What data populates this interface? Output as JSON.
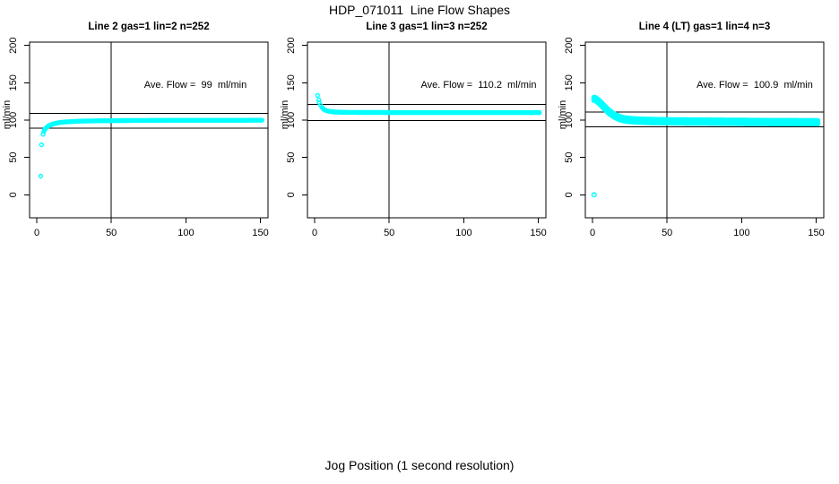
{
  "page": {
    "title": "HDP_071011  Line Flow Shapes",
    "xlabel": "Jog Position (1 second resolution)"
  },
  "colors": {
    "points": "#00FFFF",
    "axis": "#000000",
    "background": "#FFFFFF"
  },
  "chart_data": [
    {
      "type": "scatter",
      "title": "Line 2 gas=1 lin=2 n=252",
      "line": "Line 2",
      "gas": 1,
      "lin": 2,
      "n": 252,
      "annotation": "Ave. Flow =  99  ml/min",
      "ave_flow_ml_min": 99,
      "ylabel": "ml/min",
      "xticks": [
        0,
        50,
        100,
        150
      ],
      "yticks": [
        0,
        50,
        100,
        150,
        200
      ],
      "xlim": [
        -6,
        156
      ],
      "ylim": [
        -30,
        205
      ],
      "grid": false,
      "ref_lines_y": [
        108.9,
        89.1
      ],
      "vline_x": 50,
      "marker": "open-circle",
      "point_radius": 2.0,
      "overlay_offsets": [
        0
      ],
      "series_step": 0.6,
      "outliers": [
        [
          2.6,
          25
        ],
        [
          3.2,
          67
        ],
        [
          4.2,
          81
        ],
        [
          4.8,
          85
        ]
      ],
      "curve_knots": [
        [
          5.2,
          87
        ],
        [
          6,
          89
        ],
        [
          7,
          91
        ],
        [
          8,
          92.3
        ],
        [
          10,
          94.2
        ],
        [
          12,
          95.4
        ],
        [
          15,
          96.6
        ],
        [
          20,
          97.6
        ],
        [
          25,
          98.2
        ],
        [
          30,
          98.6
        ],
        [
          40,
          99.0
        ],
        [
          60,
          99.4
        ],
        [
          90,
          99.7
        ],
        [
          151,
          99.8
        ]
      ]
    },
    {
      "type": "scatter",
      "title": "Line 3 gas=1 lin=3 n=252",
      "line": "Line 3",
      "gas": 1,
      "lin": 3,
      "n": 252,
      "annotation": "Ave. Flow =  110.2  ml/min",
      "ave_flow_ml_min": 110.2,
      "ylabel": "ml/min",
      "xticks": [
        0,
        50,
        100,
        150
      ],
      "yticks": [
        0,
        50,
        100,
        150,
        200
      ],
      "xlim": [
        -6,
        156
      ],
      "ylim": [
        -30,
        205
      ],
      "grid": false,
      "ref_lines_y": [
        121.2,
        99.2
      ],
      "vline_x": 50,
      "marker": "open-circle",
      "point_radius": 2.0,
      "overlay_offsets": [
        0
      ],
      "series_step": 0.6,
      "outliers": [
        [
          2,
          133
        ],
        [
          2.8,
          127
        ],
        [
          3,
          123.5
        ],
        [
          4,
          119.8
        ],
        [
          5,
          117
        ]
      ],
      "curve_knots": [
        [
          5.5,
          115.5
        ],
        [
          6,
          114.6
        ],
        [
          7,
          113.4
        ],
        [
          8,
          112.6
        ],
        [
          10,
          111.6
        ],
        [
          12,
          111.1
        ],
        [
          15,
          110.7
        ],
        [
          20,
          110.4
        ],
        [
          30,
          110.2
        ],
        [
          50,
          110.1
        ],
        [
          151,
          110.0
        ]
      ]
    },
    {
      "type": "scatter",
      "title": "Line 4 (LT) gas=1 lin=4 n=3",
      "line": "Line 4 (LT)",
      "gas": 1,
      "lin": 4,
      "n": 3,
      "annotation": "Ave. Flow =  100.9  ml/min",
      "ave_flow_ml_min": 100.9,
      "ylabel": "ml/min",
      "xticks": [
        0,
        50,
        100,
        150
      ],
      "yticks": [
        0,
        50,
        100,
        150,
        200
      ],
      "xlim": [
        -6,
        156
      ],
      "ylim": [
        -30,
        205
      ],
      "grid": false,
      "ref_lines_y": [
        111.0,
        90.8
      ],
      "vline_x": 50,
      "marker": "open-circle",
      "point_radius": 2.3,
      "overlay_offsets": [
        -2,
        0,
        2
      ],
      "series_step": 0.5,
      "outliers": [
        [
          1,
          0
        ]
      ],
      "curve_knots": [
        [
          1,
          128.5
        ],
        [
          2,
          128
        ],
        [
          3,
          126.6
        ],
        [
          4,
          125
        ],
        [
          5,
          123.2
        ],
        [
          6,
          121.2
        ],
        [
          7,
          119.2
        ],
        [
          8,
          117.1
        ],
        [
          9,
          115
        ],
        [
          10,
          113
        ],
        [
          11,
          111.2
        ],
        [
          12,
          109.6
        ],
        [
          13,
          108.1
        ],
        [
          14,
          106.8
        ],
        [
          15,
          105.6
        ],
        [
          16,
          104.6
        ],
        [
          17,
          103.7
        ],
        [
          18,
          102.9
        ],
        [
          19,
          102.2
        ],
        [
          20,
          101.6
        ],
        [
          22,
          100.8
        ],
        [
          25,
          100.1
        ],
        [
          28,
          99.6
        ],
        [
          32,
          99.2
        ],
        [
          36,
          98.9
        ],
        [
          40,
          98.7
        ],
        [
          50,
          98.4
        ],
        [
          60,
          98.2
        ],
        [
          80,
          97.9
        ],
        [
          100,
          97.6
        ],
        [
          120,
          97.3
        ],
        [
          151,
          97.1
        ]
      ]
    }
  ]
}
